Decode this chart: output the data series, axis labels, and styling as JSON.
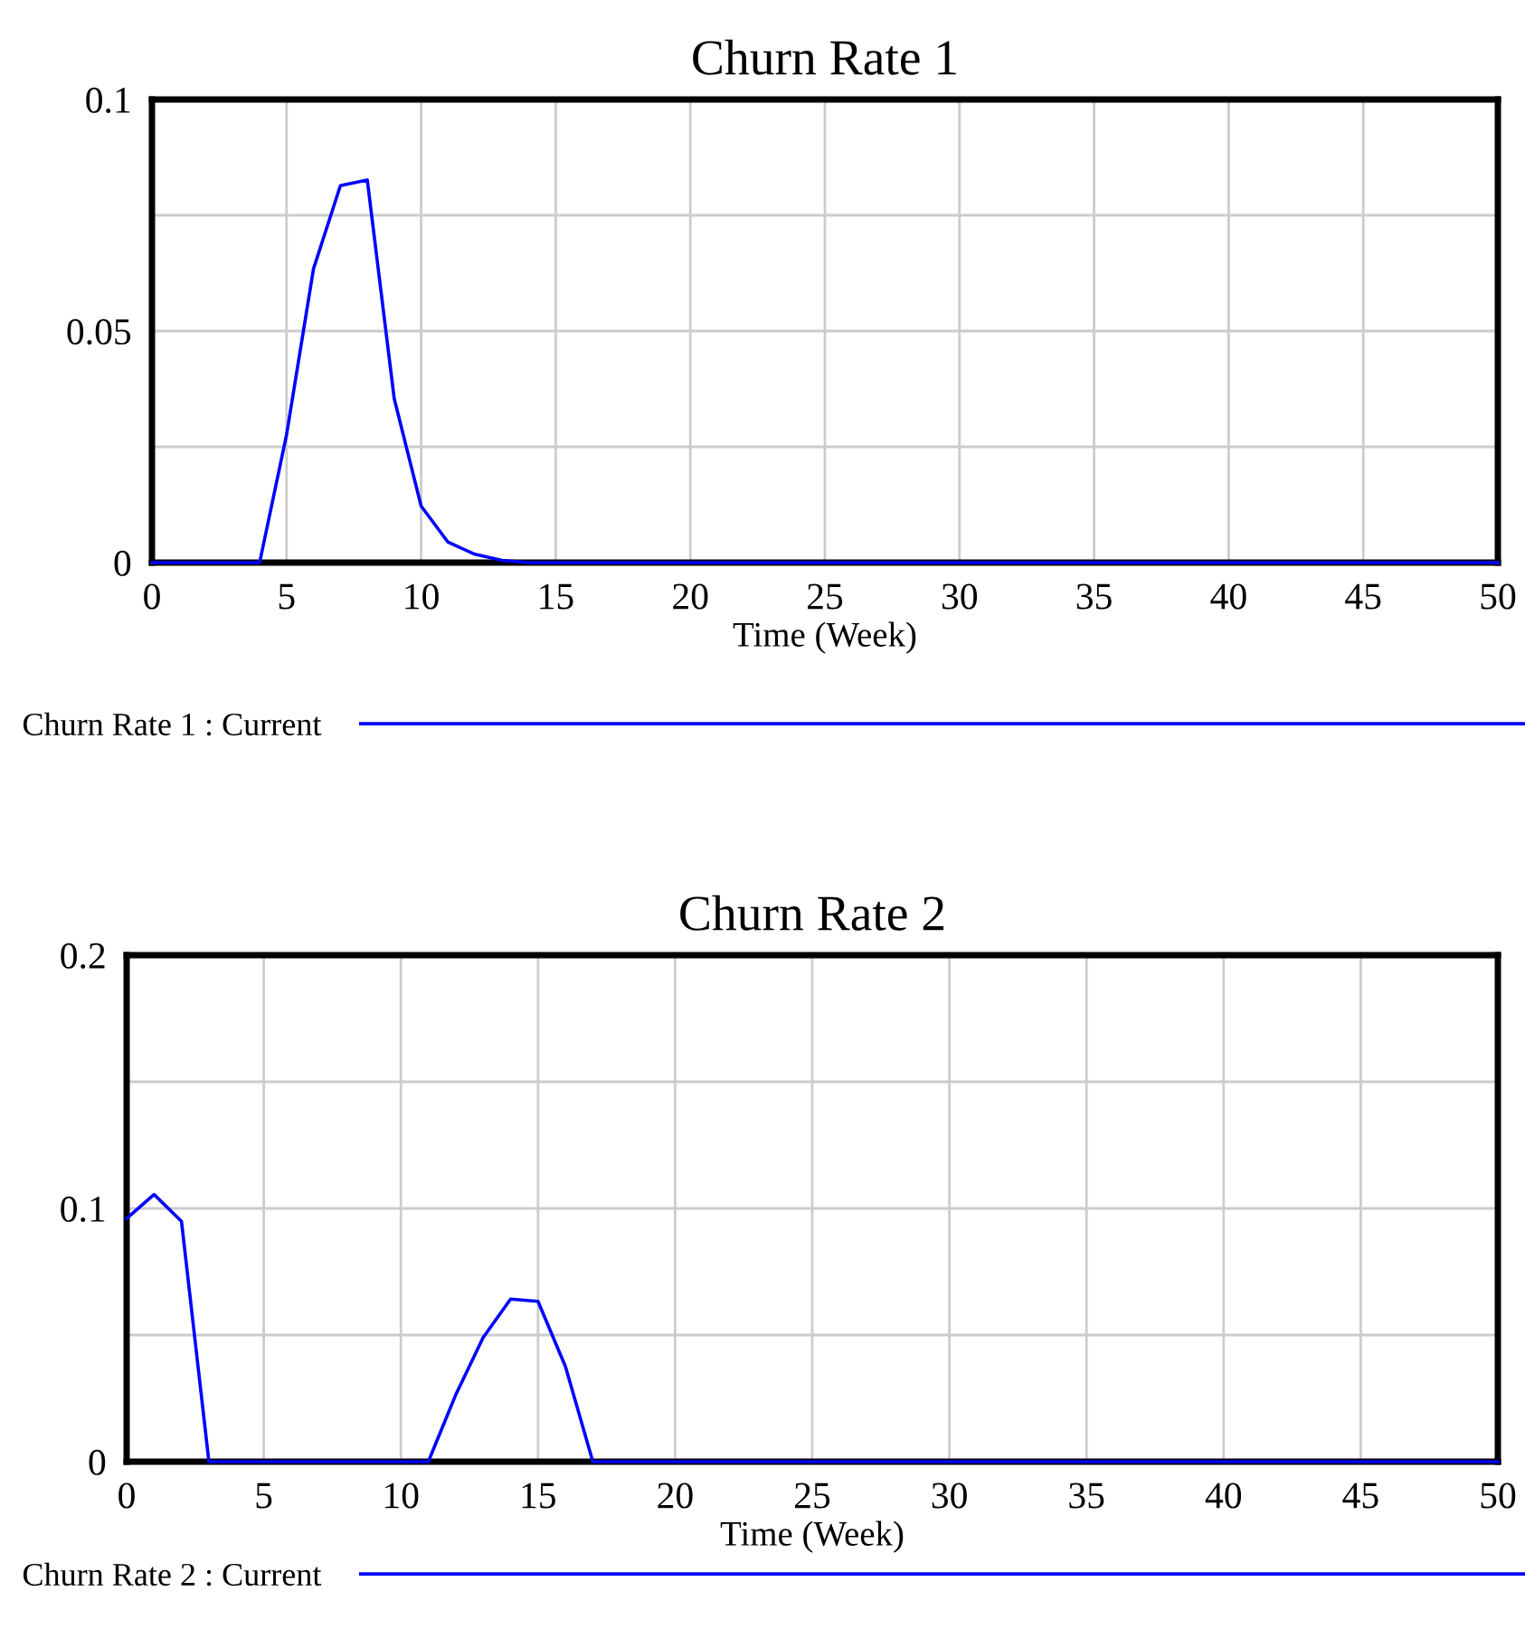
{
  "chart_data": [
    {
      "type": "line",
      "title": "Churn Rate 1",
      "xlabel": "Time (Week)",
      "x": [
        0,
        1,
        2,
        3,
        4,
        5,
        6,
        7,
        8,
        9,
        10,
        11,
        12,
        13,
        14,
        15,
        16,
        17,
        18,
        19,
        20,
        21,
        22,
        23,
        24,
        25,
        26,
        27,
        28,
        29,
        30,
        31,
        32,
        33,
        34,
        35,
        36,
        37,
        38,
        39,
        40,
        41,
        42,
        43,
        44,
        45,
        46,
        47,
        48,
        49,
        50
      ],
      "series": [
        {
          "name": "Churn Rate 1 : Current",
          "color": "#0000ff",
          "values": [
            0,
            0,
            0,
            0,
            0,
            0.0276,
            0.0634,
            0.0814,
            0.0826,
            0.0354,
            0.0122,
            0.0044,
            0.0018,
            0.0005,
            0,
            0,
            0,
            0,
            0,
            0,
            0,
            0,
            0,
            0,
            0,
            0,
            0,
            0,
            0,
            0,
            0,
            0,
            0,
            0,
            0,
            0,
            0,
            0,
            0,
            0,
            0,
            0,
            0,
            0,
            0,
            0,
            0,
            0,
            0,
            0,
            0
          ]
        }
      ],
      "xlim": [
        0,
        50
      ],
      "xticks": [
        0,
        5,
        10,
        15,
        20,
        25,
        30,
        35,
        40,
        45,
        50
      ],
      "ylim": [
        0,
        0.1
      ],
      "yticks": [
        0,
        {
          "value": 0.025,
          "label": null
        },
        0.05,
        {
          "value": 0.075,
          "label": null
        },
        0.1
      ],
      "grid": true,
      "legend": "bottom",
      "line_style": "solid",
      "marker": "none"
    },
    {
      "type": "line",
      "title": "Churn Rate 2",
      "xlabel": "Time (Week)",
      "x": [
        0,
        1,
        2,
        3,
        4,
        5,
        6,
        7,
        8,
        9,
        10,
        11,
        12,
        13,
        14,
        15,
        16,
        17,
        18,
        19,
        20,
        21,
        22,
        23,
        24,
        25,
        26,
        27,
        28,
        29,
        30,
        31,
        32,
        33,
        34,
        35,
        36,
        37,
        38,
        39,
        40,
        41,
        42,
        43,
        44,
        45,
        46,
        47,
        48,
        49,
        50
      ],
      "series": [
        {
          "name": "Churn Rate 2 : Current",
          "color": "#0000ff",
          "values": [
            0.096,
            0.1055,
            0.0949,
            0,
            0,
            0,
            0,
            0,
            0,
            0,
            0,
            0,
            0.0264,
            0.049,
            0.0642,
            0.0633,
            0.0376,
            0,
            0,
            0,
            0,
            0,
            0,
            0,
            0,
            0,
            0,
            0,
            0,
            0,
            0,
            0,
            0,
            0,
            0,
            0,
            0,
            0,
            0,
            0,
            0,
            0,
            0,
            0,
            0,
            0,
            0,
            0,
            0,
            0,
            0
          ]
        }
      ],
      "xlim": [
        0,
        50
      ],
      "xticks": [
        0,
        5,
        10,
        15,
        20,
        25,
        30,
        35,
        40,
        45,
        50
      ],
      "ylim": [
        0,
        0.2
      ],
      "yticks": [
        0,
        {
          "value": 0.05,
          "label": null
        },
        0.1,
        {
          "value": 0.15,
          "label": null
        },
        0.2
      ],
      "grid": true,
      "legend": "bottom",
      "line_style": "solid",
      "marker": "none"
    }
  ]
}
